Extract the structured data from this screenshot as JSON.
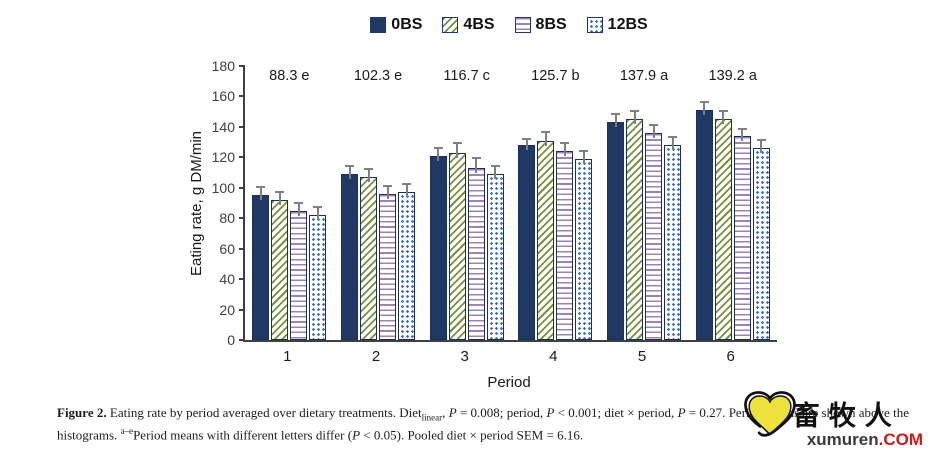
{
  "chart_data": {
    "type": "bar",
    "title": "",
    "categories": [
      "1",
      "2",
      "3",
      "4",
      "5",
      "6"
    ],
    "xlabel": "Period",
    "ylabel": "Eating rate, g DM/min",
    "ylim": [
      0,
      180
    ],
    "ytick_step": 20,
    "grid": false,
    "legend_position": "top",
    "series": [
      {
        "name": "0BS",
        "pattern": "solid",
        "color": "#1f3864",
        "values": [
          95,
          109,
          121,
          128,
          143,
          151
        ],
        "errors": [
          6,
          6,
          6,
          5,
          6,
          6
        ]
      },
      {
        "name": "4BS",
        "pattern": "diagonal",
        "color": "#76923c",
        "values": [
          92,
          107,
          123,
          131,
          145,
          145
        ],
        "errors": [
          6,
          6,
          7,
          6,
          6,
          6
        ]
      },
      {
        "name": "8BS",
        "pattern": "hlines",
        "color": "#9b84b5",
        "values": [
          85,
          96,
          113,
          124,
          136,
          134
        ],
        "errors": [
          6,
          6,
          7,
          6,
          6,
          5
        ]
      },
      {
        "name": "12BS",
        "pattern": "dots",
        "color": "#4472c4",
        "values": [
          82,
          97,
          109,
          119,
          128,
          126
        ],
        "errors": [
          6,
          6,
          6,
          6,
          6,
          6
        ]
      }
    ],
    "group_annotations": [
      "88.3 e",
      "102.3 e",
      "116.7 c",
      "125.7 b",
      "137.9 a",
      "139.2 a"
    ]
  },
  "caption": {
    "parts": [
      {
        "t": "Figure 2.",
        "b": 1
      },
      {
        "t": " Eating rate by period averaged over dietary treatments. Diet"
      },
      {
        "t": "linear",
        "sub": 1
      },
      {
        "t": ", "
      },
      {
        "t": "P",
        "i": 1
      },
      {
        "t": " = 0.008; period, "
      },
      {
        "t": "P",
        "i": 1
      },
      {
        "t": " < 0.001; diet × period, "
      },
      {
        "t": "P",
        "i": 1
      },
      {
        "t": " = 0.27. Period means are shown above the histograms. "
      },
      {
        "t": "a–e",
        "sup": 1
      },
      {
        "t": "Period means with different letters differ ("
      },
      {
        "t": "P",
        "i": 1
      },
      {
        "t": " < 0.05). Pooled diet × period SEM = 6.16."
      }
    ]
  },
  "watermark": {
    "chinese": "畜牧人",
    "domain": "xumuren",
    "tld": ".COM",
    "heart_color": "#ece23b",
    "tld_color": "#c81d1d"
  }
}
